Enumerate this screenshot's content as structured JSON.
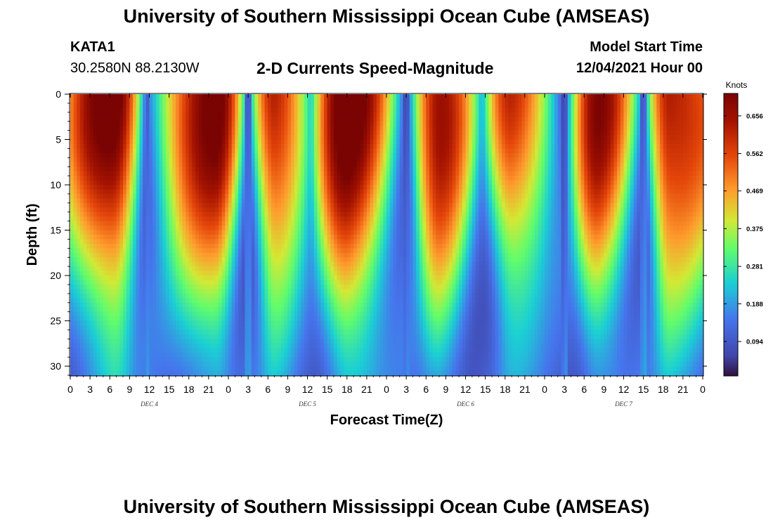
{
  "header": {
    "title": "University of Southern Mississippi Ocean Cube (AMSEAS)",
    "station": "KATA1",
    "coordinates": "30.2580N  88.2130W",
    "variable_title": "2-D Currents Speed-Magnitude",
    "model_start_label": "Model Start Time",
    "model_start_value": "12/04/2021 Hour 00"
  },
  "footer": {
    "title": "University of Southern Mississippi Ocean Cube (AMSEAS)"
  },
  "chart_data": {
    "type": "heatmap",
    "title": "2-D Currents Speed-Magnitude",
    "xlabel": "Forecast Time(Z)",
    "ylabel": "Depth (ft)",
    "x_range_hours": [
      0,
      96
    ],
    "x_tick_labels": [
      "0",
      "3",
      "6",
      "9",
      "12",
      "15",
      "18",
      "21",
      "0",
      "3",
      "6",
      "9",
      "12",
      "15",
      "18",
      "21",
      "0",
      "3",
      "6",
      "9",
      "12",
      "15",
      "18",
      "21",
      "0",
      "3",
      "6",
      "9",
      "12",
      "15",
      "18",
      "21",
      "0"
    ],
    "day_labels": [
      {
        "label": "DEC 4",
        "hour": 12
      },
      {
        "label": "DEC 5",
        "hour": 36
      },
      {
        "label": "DEC 6",
        "hour": 60
      },
      {
        "label": "DEC 7",
        "hour": 84
      }
    ],
    "y_range_ft": [
      0,
      31
    ],
    "y_inverted": true,
    "y_ticks": [
      0,
      5,
      10,
      15,
      20,
      25,
      30
    ],
    "colorbar": {
      "unit": "Knots",
      "range": [
        0.01,
        0.71
      ],
      "tick_values": [
        0.656,
        0.562,
        0.469,
        0.375,
        0.281,
        0.188,
        0.094
      ],
      "tick_labels": [
        "0.656",
        "0.562",
        "0.469",
        "0.375",
        "0.281",
        "0.188",
        "0.094"
      ]
    },
    "speed_profile": {
      "surface_speed_peaks": [
        {
          "hour": 6.5,
          "speed_knots": 0.68
        },
        {
          "hour": 22,
          "speed_knots": 0.66
        },
        {
          "hour": 31,
          "speed_knots": 0.58
        },
        {
          "hour": 42,
          "speed_knots": 0.7
        },
        {
          "hour": 56,
          "speed_knots": 0.62
        },
        {
          "hour": 67,
          "speed_knots": 0.54
        },
        {
          "hour": 80,
          "speed_knots": 0.62
        },
        {
          "hour": 91,
          "speed_knots": 0.6
        }
      ],
      "slack_minima": [
        {
          "hour": 11.5,
          "speed_knots": 0.08
        },
        {
          "hour": 27,
          "speed_knots": 0.05
        },
        {
          "hour": 36.5,
          "speed_knots": 0.2
        },
        {
          "hour": 51,
          "speed_knots": 0.04
        },
        {
          "hour": 62.5,
          "speed_knots": 0.1
        },
        {
          "hour": 75,
          "speed_knots": 0.04
        },
        {
          "hour": 87,
          "speed_knots": 0.06
        }
      ]
    }
  }
}
